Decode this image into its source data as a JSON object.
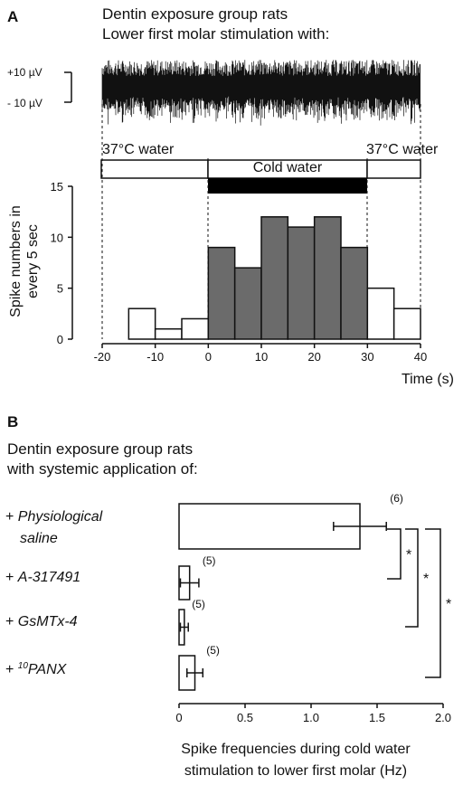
{
  "panel_a": {
    "letter": "A",
    "header_line1": "Dentin exposure group rats",
    "header_line2": "Lower first molar stimulation with:",
    "scale_top": "+10 µV",
    "scale_bottom": "- 10 µV",
    "band_left": "37°C water",
    "band_middle": "Cold water",
    "band_right": "37°C water",
    "ylabel_line1": "Spike numbers in",
    "ylabel_line2": "every 5 sec",
    "xlabel": "Time (s)"
  },
  "panel_b": {
    "letter": "B",
    "header_line1": "Dentin exposure group rats",
    "header_line2": "with systemic application of:",
    "xlabel_line1": "Spike frequencies during cold water",
    "xlabel_line2": "stimulation to lower first molar (Hz)",
    "groups": [
      {
        "prefix": "+ ",
        "name_line1": "Physiological",
        "name_line2": "saline",
        "superscript": ""
      },
      {
        "prefix": "+ ",
        "name_line1": "A-317491",
        "name_line2": "",
        "superscript": ""
      },
      {
        "prefix": "+ ",
        "name_line1": "GsMTx-4",
        "name_line2": "",
        "superscript": ""
      },
      {
        "prefix": "+ ",
        "name_line1": "PANX",
        "name_line2": "",
        "superscript": "10"
      }
    ],
    "significance": [
      "*",
      "*",
      "*"
    ]
  },
  "chart_data": [
    {
      "type": "bar",
      "title": "",
      "xlabel": "Time (s)",
      "ylabel": "Spike numbers in every 5 sec",
      "xlim": [
        -20,
        40
      ],
      "ylim": [
        0,
        15
      ],
      "xticks": [
        -20,
        -10,
        0,
        10,
        20,
        30,
        40
      ],
      "yticks": [
        0,
        5,
        10,
        15
      ],
      "bin_width": 5,
      "bin_starts": [
        -20,
        -15,
        -10,
        -5,
        0,
        5,
        10,
        15,
        20,
        25,
        30,
        35
      ],
      "values": [
        0,
        3,
        1,
        2,
        9,
        7,
        12,
        11,
        12,
        9,
        5,
        3
      ],
      "conditions": [
        {
          "label": "37°C water",
          "from": -20,
          "to": 0,
          "bar_color": "#ffffff"
        },
        {
          "label": "Cold water",
          "from": 0,
          "to": 30,
          "bar_color": "#6b6b6b"
        },
        {
          "label": "37°C water",
          "from": 30,
          "to": 40,
          "bar_color": "#ffffff"
        }
      ],
      "grid": false
    },
    {
      "type": "bar",
      "orientation": "horizontal",
      "title": "",
      "xlabel": "Spike frequencies during cold water stimulation to lower first molar (Hz)",
      "xlim": [
        0,
        2.0
      ],
      "xticks": [
        "0",
        "0.5",
        "1.0",
        "1.5",
        "2.0"
      ],
      "categories": [
        "Physiological saline",
        "A-317491",
        "GsMTx-4",
        "10PANX"
      ],
      "values": [
        1.37,
        0.08,
        0.04,
        0.12
      ],
      "errors": [
        0.2,
        0.07,
        0.03,
        0.06
      ],
      "n_labels": [
        "(6)",
        "(5)",
        "(5)",
        "(5)"
      ],
      "comparisons": [
        {
          "from": "Physiological saline",
          "to": "A-317491",
          "label": "*"
        },
        {
          "from": "Physiological saline",
          "to": "GsMTx-4",
          "label": "*"
        },
        {
          "from": "Physiological saline",
          "to": "10PANX",
          "label": "*"
        }
      ],
      "grid": false
    }
  ]
}
